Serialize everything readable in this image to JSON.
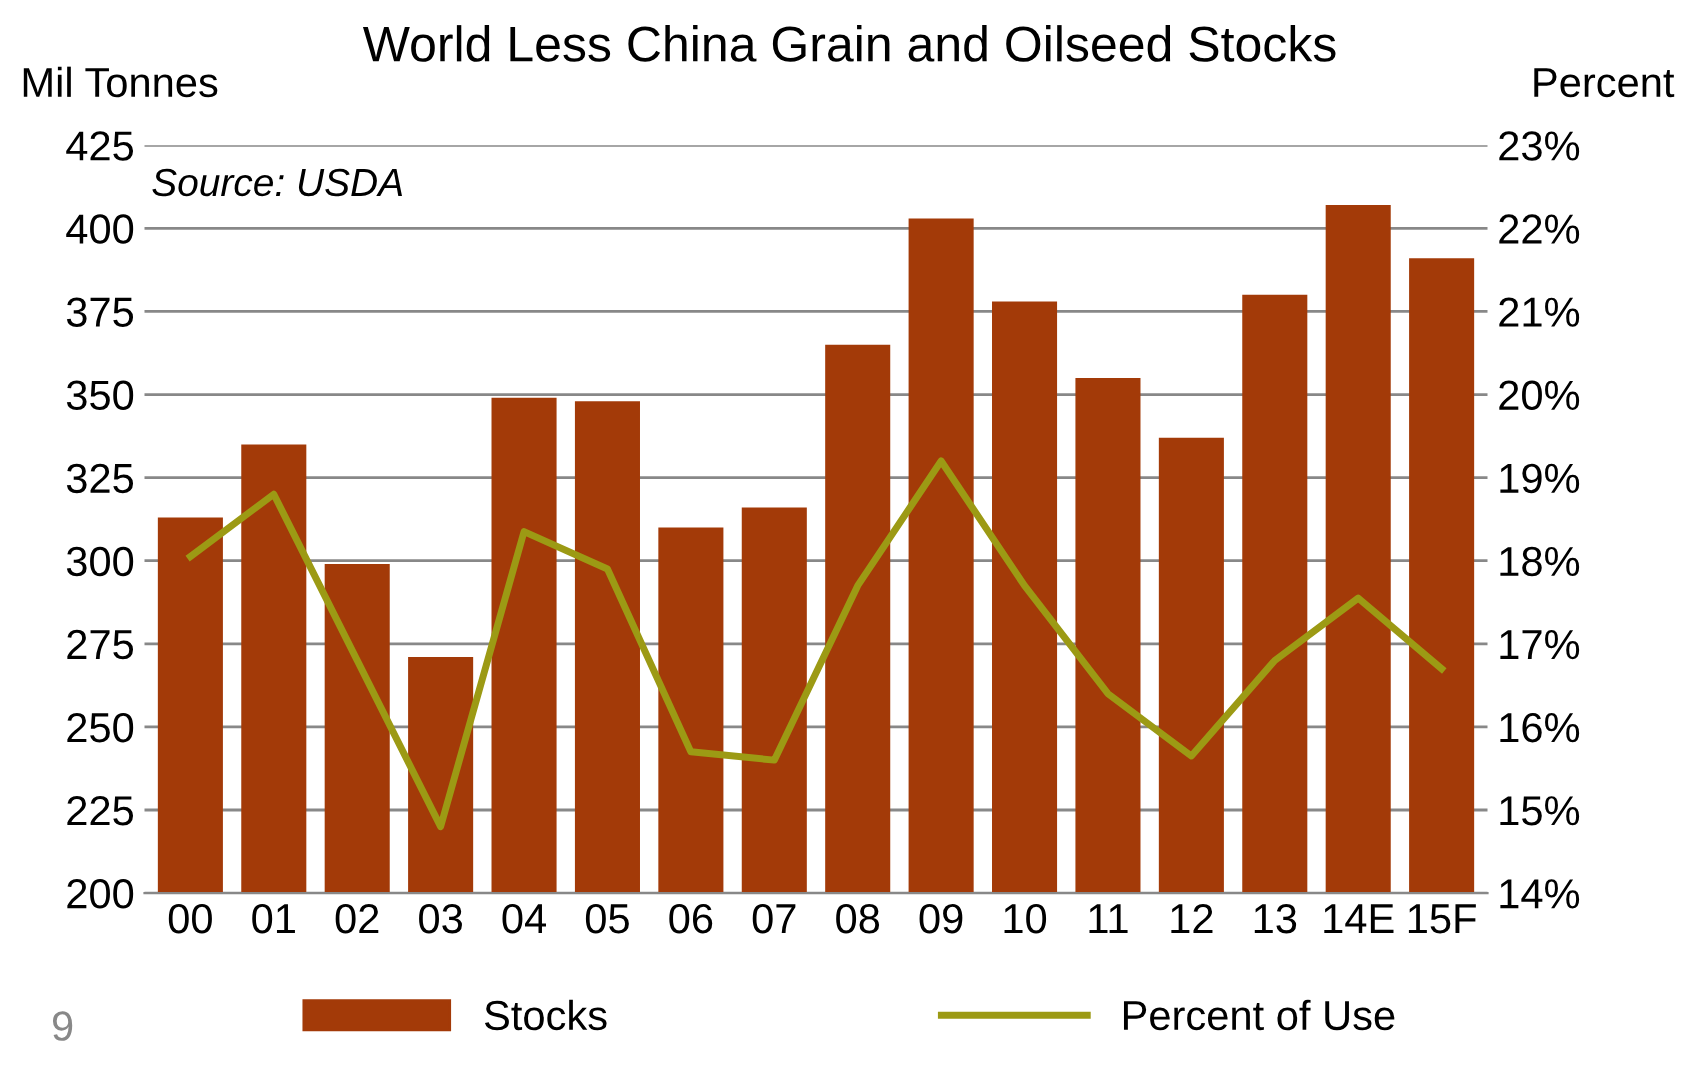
{
  "chart_data": {
    "type": "bar",
    "title": "World Less China Grain and Oilseed Stocks",
    "ylabel": "Mil Tonnes",
    "y2label": "Percent",
    "annotations": [
      "Source: USDA",
      "9"
    ],
    "categories": [
      "00",
      "01",
      "02",
      "03",
      "04",
      "05",
      "06",
      "07",
      "08",
      "09",
      "10",
      "11",
      "12",
      "13",
      "14E",
      "15F"
    ],
    "series": [
      {
        "name": "Stocks",
        "color": "#a33a08",
        "values": [
          313,
          335,
          299,
          271,
          349,
          348,
          310,
          316,
          365,
          403,
          378,
          355,
          337,
          380,
          407,
          391
        ]
      },
      {
        "name": "Percent of Use",
        "type": "line",
        "axis": "y2",
        "color": "#9c9a14",
        "values": [
          18.05,
          18.8,
          16.8,
          14.8,
          18.35,
          17.9,
          15.7,
          15.6,
          17.7,
          19.2,
          17.7,
          16.4,
          15.65,
          16.8,
          17.55,
          16.7
        ]
      }
    ],
    "ylim": [
      200,
      425
    ],
    "yticks": [
      200,
      225,
      250,
      275,
      300,
      325,
      350,
      375,
      400,
      425
    ],
    "y2lim": [
      14,
      23
    ],
    "y2ticks": [
      {
        "value": 14,
        "label": "14%"
      },
      {
        "value": 15,
        "label": "15%"
      },
      {
        "value": 16,
        "label": "16%"
      },
      {
        "value": 17,
        "label": "17%"
      },
      {
        "value": 18,
        "label": "18%"
      },
      {
        "value": 19,
        "label": "19%"
      },
      {
        "value": 20,
        "label": "20%"
      },
      {
        "value": 21,
        "label": "21%"
      },
      {
        "value": 22,
        "label": "22%"
      },
      {
        "value": 23,
        "label": "23%"
      }
    ],
    "grid": "y",
    "legend": "bottom",
    "marker": "none",
    "line_style": "solid"
  }
}
